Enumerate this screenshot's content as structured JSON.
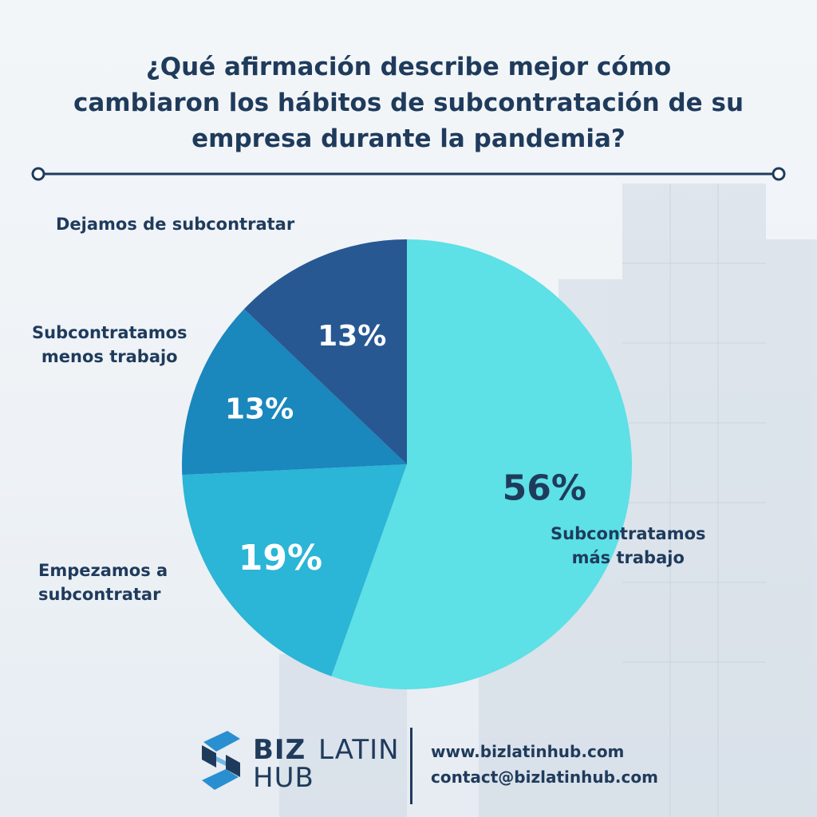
{
  "title_lines": [
    "¿Qué afirmación describe mejor cómo",
    "cambiaron los hábitos de subcontratación de su",
    "empresa durante la pandemia?"
  ],
  "colors": {
    "title": "#1f3b5c",
    "slice_mas_trabajo": "#5de0e6",
    "slice_empezamos": "#2bb5d6",
    "slice_menos_trabajo": "#1a87bd",
    "slice_dejamos": "#275892"
  },
  "chart_data": {
    "type": "pie",
    "start_angle_deg": 0,
    "direction": "clockwise",
    "slices": [
      {
        "label_lines": [
          "Subcontratamos",
          "más trabajo"
        ],
        "value": 56,
        "value_label": "56%",
        "color": "#5de0e6",
        "value_text_color": "#1f3b5c"
      },
      {
        "label_lines": [
          "Empezamos a",
          "subcontratar"
        ],
        "value": 19,
        "value_label": "19%",
        "color": "#2bb5d6",
        "value_text_color": "#ffffff"
      },
      {
        "label_lines": [
          "Subcontratamos",
          "menos trabajo"
        ],
        "value": 13,
        "value_label": "13%",
        "color": "#1a87bd",
        "value_text_color": "#ffffff"
      },
      {
        "label_lines": [
          "Dejamos de subcontratar"
        ],
        "value": 13,
        "value_label": "13%",
        "color": "#275892",
        "value_text_color": "#ffffff"
      }
    ]
  },
  "footer": {
    "brand": {
      "biz": "BIZ",
      "latin": "LATIN",
      "hub": "HUB"
    },
    "website": "www.bizlatinhub.com",
    "email": "contact@bizlatinhub.com"
  }
}
